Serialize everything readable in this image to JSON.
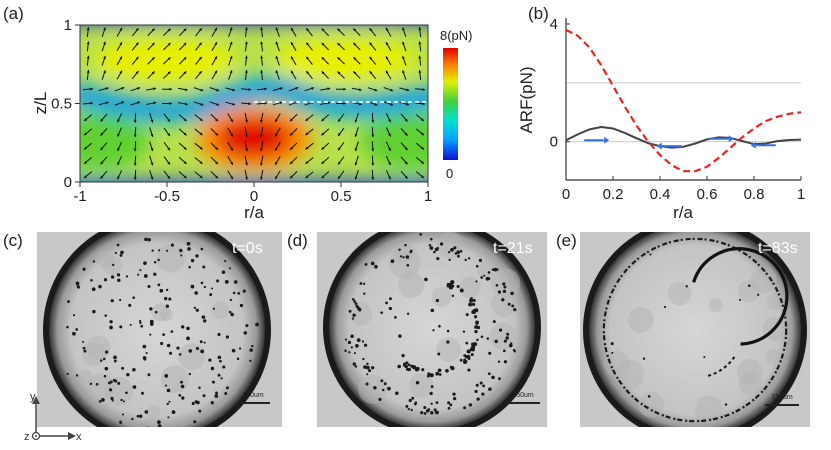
{
  "figure": {
    "panel_labels": [
      "(a)",
      "(b)",
      "(c)",
      "(d)",
      "(e)"
    ],
    "colors": {
      "solid_curve": "#444444",
      "dashed_curve": "#ee2222",
      "arrow": "#3b6fe0",
      "gridline": "#bbbbbb"
    }
  },
  "chart_data": [
    {
      "type": "heatmap",
      "panel": "(a)",
      "xlabel": "r/a",
      "ylabel": "z/L",
      "xlim": [
        -1,
        1
      ],
      "ylim": [
        0,
        1
      ],
      "x_ticks": [
        "-1",
        "-0.5",
        "0",
        "0.5",
        "1"
      ],
      "y_ticks": [
        "0",
        "0.5",
        "1"
      ],
      "colorbar": {
        "max_label": "8(pN)",
        "min_label": "0",
        "range": [
          0,
          8
        ]
      },
      "overlay": "force vector arrows",
      "colormap": [
        "#1010d0",
        "#00a0ff",
        "#00e0d0",
        "#40d040",
        "#e0f000",
        "#ff8000",
        "#e00000"
      ]
    },
    {
      "type": "line",
      "panel": "(b)",
      "xlabel": "r/a",
      "ylabel": "ARF(pN)",
      "xlim": [
        0,
        1
      ],
      "ylim": [
        -1.3,
        4
      ],
      "x_ticks": [
        "0",
        "0.2",
        "0.4",
        "0.6",
        "0.8",
        "1"
      ],
      "y_ticks": [
        "0",
        "4"
      ],
      "grid_lines_y": [
        0,
        2
      ],
      "series": [
        {
          "style": "solid",
          "x": [
            0,
            0.05,
            0.1,
            0.15,
            0.2,
            0.25,
            0.3,
            0.35,
            0.4,
            0.45,
            0.5,
            0.55,
            0.6,
            0.65,
            0.7,
            0.75,
            0.8,
            0.85,
            0.9,
            0.95,
            1.0
          ],
          "y": [
            0.05,
            0.25,
            0.42,
            0.5,
            0.45,
            0.3,
            0.12,
            -0.05,
            -0.15,
            -0.2,
            -0.17,
            -0.06,
            0.08,
            0.15,
            0.13,
            0.02,
            -0.08,
            -0.06,
            0.02,
            0.06,
            0.07
          ]
        },
        {
          "style": "dashed",
          "x": [
            0,
            0.05,
            0.1,
            0.15,
            0.2,
            0.25,
            0.3,
            0.35,
            0.4,
            0.45,
            0.5,
            0.55,
            0.6,
            0.65,
            0.7,
            0.75,
            0.8,
            0.85,
            0.9,
            0.95,
            1.0
          ],
          "y": [
            3.8,
            3.6,
            3.2,
            2.6,
            1.9,
            1.2,
            0.55,
            0.0,
            -0.45,
            -0.8,
            -1.0,
            -1.0,
            -0.85,
            -0.55,
            -0.2,
            0.15,
            0.45,
            0.7,
            0.85,
            0.95,
            1.0
          ]
        }
      ],
      "annotations": [
        {
          "type": "arrow",
          "direction": "right",
          "x": 0.12,
          "y": 0.05
        },
        {
          "type": "arrow",
          "direction": "left",
          "x": 0.45,
          "y": -0.15
        },
        {
          "type": "arrow",
          "direction": "right",
          "x": 0.65,
          "y": 0.1
        },
        {
          "type": "arrow",
          "direction": "left",
          "x": 0.85,
          "y": -0.12
        }
      ]
    }
  ],
  "micrographs": [
    {
      "panel": "(c)",
      "time": "t=0s",
      "scale_bar": "150um",
      "pattern": "scattered"
    },
    {
      "panel": "(d)",
      "time": "t=21s",
      "scale_bar": "150um",
      "pattern": "forming-rings"
    },
    {
      "panel": "(e)",
      "time": "t=83s",
      "scale_bar": "150um",
      "pattern": "rings"
    }
  ],
  "axes_indicator": {
    "y": "y",
    "z": "z",
    "x": "x"
  }
}
